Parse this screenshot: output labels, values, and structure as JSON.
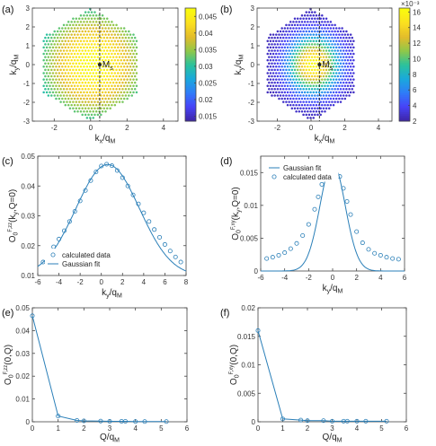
{
  "panels": [
    {
      "label": "(a)"
    },
    {
      "label": "(b)"
    },
    {
      "label": "(c)"
    },
    {
      "label": "(d)"
    },
    {
      "label": "(e)"
    },
    {
      "label": "(f)"
    }
  ],
  "colors": {
    "series": "#2a7fb8",
    "viridis": [
      "#3e26a8",
      "#4743f8",
      "#2f7cf8",
      "#1aa9dc",
      "#2bc29c",
      "#8fc84a",
      "#e3bc2b",
      "#fbe020",
      "#f9fb0e"
    ]
  },
  "chart_data": [
    {
      "panel": "a",
      "type": "heatmap",
      "xlabel": "k_x/q_M",
      "ylabel": "k_y/q_M",
      "xlim": [
        -3.2,
        4.8
      ],
      "ylim": [
        -3,
        3
      ],
      "xticks": [
        "-2",
        "0",
        "2",
        "4"
      ],
      "yticks": [
        "-3",
        "-2",
        "-1",
        "0",
        "1",
        "2",
        "3"
      ],
      "annotation": "M_s",
      "marker": [
        0.5,
        0.0
      ],
      "hexagon_radius": 3.0,
      "sigma": 2.8,
      "colorbar": {
        "min": 0.0135,
        "max": 0.0475,
        "ticks": [
          "0.015",
          "0.02",
          "0.025",
          "0.03",
          "0.035",
          "0.04",
          "0.045"
        ],
        "exponent": ""
      }
    },
    {
      "panel": "b",
      "type": "heatmap",
      "xlabel": "k_x/q_M",
      "ylabel": "k_y/q_M",
      "xlim": [
        -3.2,
        4.8
      ],
      "ylim": [
        -3,
        3
      ],
      "xticks": [
        "-2",
        "0",
        "2",
        "4"
      ],
      "yticks": [
        "-3",
        "-2",
        "-1",
        "0",
        "1",
        "2",
        "3"
      ],
      "annotation": "M_s",
      "marker": [
        0.5,
        0.0
      ],
      "hexagon_radius": 3.0,
      "sigma": 1.0,
      "colorbar": {
        "min": 2,
        "max": 16.5,
        "ticks": [
          "2",
          "4",
          "6",
          "8",
          "10",
          "12",
          "14",
          "16"
        ],
        "exponent": "×10⁻³"
      }
    },
    {
      "panel": "c",
      "type": "scatter",
      "ylabel": "O_0^{F,zz}(k_y,Q=0)",
      "xlabel": "k_y/q_M",
      "xlim": [
        -6,
        8
      ],
      "ylim": [
        0.01,
        0.05
      ],
      "xticks": [
        "-6",
        "-4",
        "-2",
        "0",
        "2",
        "4",
        "6",
        "8"
      ],
      "yticks": [
        "0.01",
        "0.02",
        "0.03",
        "0.04",
        "0.05"
      ],
      "legend": [
        "calculated data",
        "Gaussian fit"
      ],
      "legend_position": "lower-left",
      "x": [
        -5.5,
        -5.0,
        -4.5,
        -4.0,
        -3.5,
        -3.0,
        -2.5,
        -2.0,
        -1.5,
        -1.0,
        -0.5,
        0.0,
        0.5,
        1.0,
        1.5,
        2.0,
        2.5,
        3.0,
        3.5,
        4.0,
        4.5,
        5.0,
        5.5,
        6.0,
        6.5,
        7.0,
        7.5
      ],
      "y": [
        0.0145,
        0.017,
        0.0196,
        0.0222,
        0.025,
        0.0281,
        0.0315,
        0.035,
        0.0385,
        0.0418,
        0.0447,
        0.0467,
        0.0473,
        0.0468,
        0.0452,
        0.0428,
        0.04,
        0.037,
        0.034,
        0.031,
        0.0281,
        0.0254,
        0.0228,
        0.0204,
        0.0182,
        0.0162,
        0.0145
      ],
      "fit": {
        "amplitude": 0.0375,
        "center": 0.6,
        "sigma": 3.0,
        "offset": 0.0097
      }
    },
    {
      "panel": "d",
      "type": "scatter",
      "ylabel": "O_0^{F,xy}(k_y,Q=0)",
      "xlabel": "k_y/q_M",
      "xlim": [
        -6,
        6
      ],
      "ylim": [
        0,
        0.0175
      ],
      "xticks": [
        "-6",
        "-4",
        "-2",
        "0",
        "2",
        "4",
        "6"
      ],
      "yticks": [
        "0",
        "0.005",
        "0.01",
        "0.015"
      ],
      "legend": [
        "Gaussian fit",
        "calculated data"
      ],
      "legend_position": "top-left",
      "x": [
        -5.5,
        -5.0,
        -4.5,
        -4.0,
        -3.5,
        -3.0,
        -2.5,
        -2.0,
        -1.5,
        -1.2,
        -0.9,
        -0.6,
        -0.3,
        0.0,
        0.3,
        0.6,
        0.9,
        1.2,
        1.5,
        2.0,
        2.5,
        3.0,
        3.5,
        4.0,
        4.5,
        5.0,
        5.5
      ],
      "y": [
        0.0019,
        0.0021,
        0.0024,
        0.0028,
        0.0034,
        0.0042,
        0.0054,
        0.0071,
        0.0094,
        0.0113,
        0.0132,
        0.0149,
        0.0159,
        0.0162,
        0.0157,
        0.0144,
        0.0126,
        0.0106,
        0.0086,
        0.006,
        0.0043,
        0.0033,
        0.0027,
        0.0024,
        0.0021,
        0.0019,
        0.0018
      ],
      "fit": {
        "amplitude": 0.0165,
        "center": 0.0,
        "sigma": 1.05,
        "offset": 0.0
      }
    },
    {
      "panel": "e",
      "type": "line",
      "ylabel": "O_0^{F,zz}(0,Q)",
      "xlabel": "Q/q_M",
      "xlim": [
        0,
        6
      ],
      "ylim": [
        0,
        0.05
      ],
      "xticks": [
        "0",
        "1",
        "2",
        "3",
        "4",
        "5",
        "6"
      ],
      "yticks": [
        "0",
        "0.01",
        "0.02",
        "0.03",
        "0.04",
        "0.05"
      ],
      "x": [
        0,
        1,
        1.73,
        2,
        2.65,
        3,
        3.46,
        3.61,
        4,
        4.36,
        5.2
      ],
      "y": [
        0.0465,
        0.0025,
        0.0006,
        0.0004,
        0.0003,
        0.0002,
        0.0002,
        0.0002,
        0.0001,
        0.0001,
        0.0001
      ]
    },
    {
      "panel": "f",
      "type": "line",
      "ylabel": "O_0^{F,xy}(0,Q)",
      "xlabel": "Q/q_M",
      "xlim": [
        0,
        6
      ],
      "ylim": [
        0,
        0.02
      ],
      "xticks": [
        "0",
        "1",
        "2",
        "3",
        "4",
        "5",
        "6"
      ],
      "yticks": [
        "0",
        "0.005",
        "0.01",
        "0.015",
        "0.02"
      ],
      "x": [
        0,
        1,
        1.73,
        2,
        2.65,
        3,
        3.46,
        3.61,
        4,
        4.36,
        5.2
      ],
      "y": [
        0.016,
        0.0005,
        0.0003,
        0.0002,
        0.0002,
        0.0001,
        0.0001,
        0.0001,
        0.0001,
        0.0001,
        0.0001
      ]
    }
  ]
}
